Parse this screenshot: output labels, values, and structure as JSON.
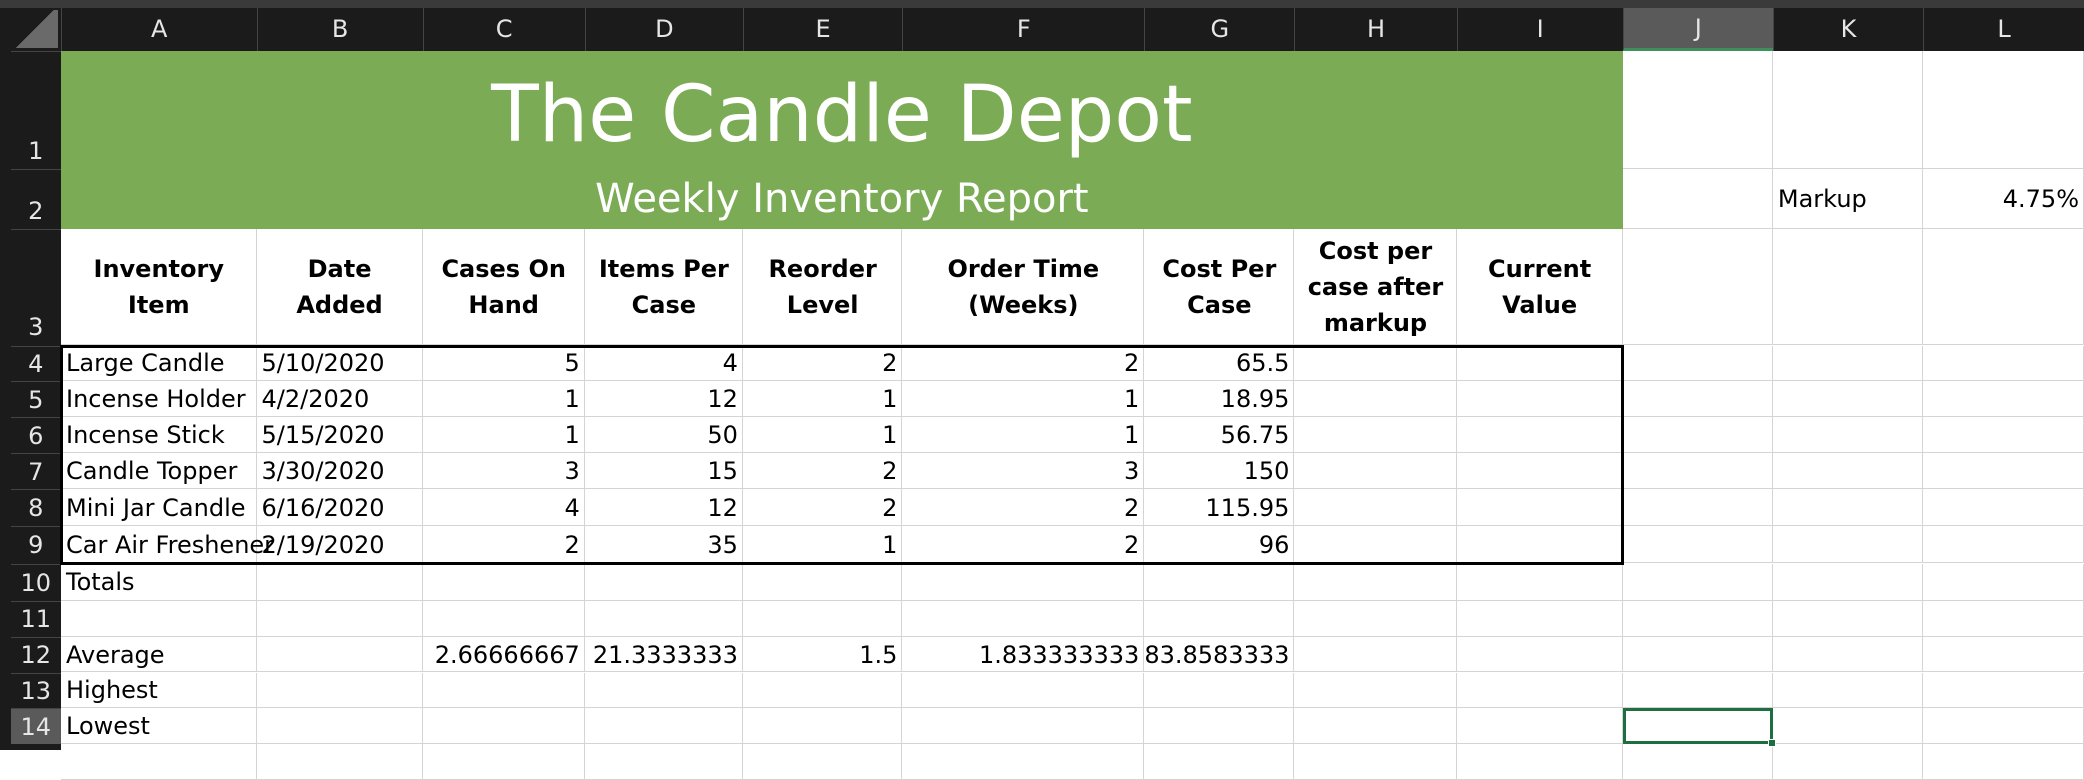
{
  "columns": [
    "A",
    "B",
    "C",
    "D",
    "E",
    "F",
    "G",
    "H",
    "I",
    "J",
    "K",
    "L"
  ],
  "row_numbers": [
    1,
    2,
    3,
    4,
    5,
    6,
    7,
    8,
    9,
    10,
    11,
    12,
    13,
    14
  ],
  "title": "The Candle Depot",
  "subtitle": "Weekly Inventory Report",
  "table": {
    "headers": [
      "Inventory Item",
      "Date Added",
      "Cases On Hand",
      "Items Per Case",
      "Reorder Level",
      "Order Time (Weeks)",
      "Cost Per Case",
      "Cost per case after markup",
      "Current Value"
    ],
    "rows": [
      [
        "Large Candle",
        "5/10/2020",
        5,
        4,
        2,
        2,
        65.5
      ],
      [
        "Incense Holder",
        "4/2/2020",
        1,
        12,
        1,
        1,
        18.95
      ],
      [
        "Incense Stick",
        "5/15/2020",
        1,
        50,
        1,
        1,
        56.75
      ],
      [
        "Candle Topper",
        "3/30/2020",
        3,
        15,
        2,
        3,
        150
      ],
      [
        "Mini Jar Candle",
        "6/16/2020",
        4,
        12,
        2,
        2,
        115.95
      ],
      [
        "Car Air Freshener",
        "2/19/2020",
        2,
        35,
        1,
        2,
        96
      ]
    ]
  },
  "summary": {
    "totals": {
      "label": "Totals"
    },
    "average": {
      "label": "Average",
      "values": [
        2.66666667,
        21.3333333,
        1.5,
        1.833333333,
        83.8583333
      ]
    },
    "highest": {
      "label": "Highest"
    },
    "lowest": {
      "label": "Lowest"
    }
  },
  "markup": {
    "label": "Markup",
    "value": "4.75%"
  }
}
